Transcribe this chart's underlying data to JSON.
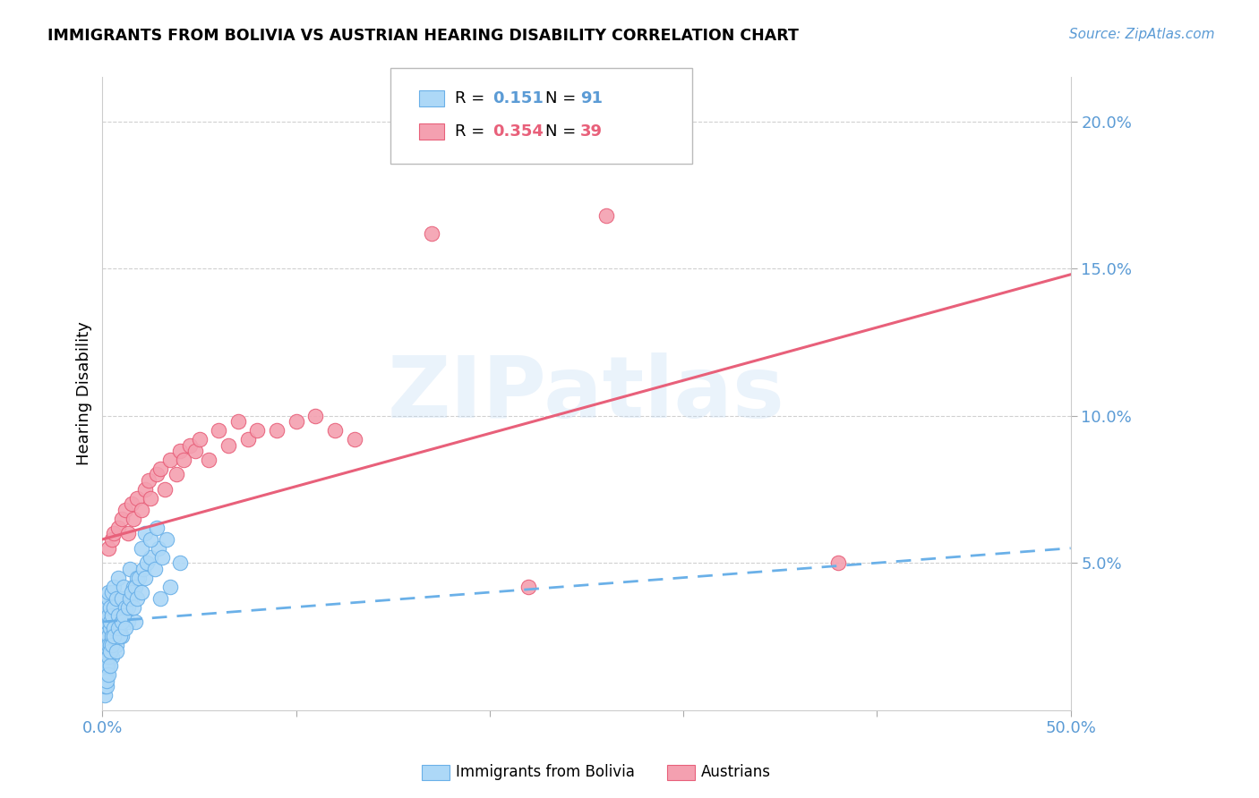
{
  "title": "IMMIGRANTS FROM BOLIVIA VS AUSTRIAN HEARING DISABILITY CORRELATION CHART",
  "source": "Source: ZipAtlas.com",
  "ylabel": "Hearing Disability",
  "watermark": "ZIPatlas",
  "xlim": [
    0.0,
    0.5
  ],
  "ylim": [
    0.0,
    0.215
  ],
  "yticks": [
    0.05,
    0.1,
    0.15,
    0.2
  ],
  "ytick_labels": [
    "5.0%",
    "10.0%",
    "15.0%",
    "20.0%"
  ],
  "xticks": [
    0.0,
    0.1,
    0.2,
    0.3,
    0.4,
    0.5
  ],
  "xtick_labels": [
    "0.0%",
    "",
    "",
    "",
    "",
    "50.0%"
  ],
  "color_blue": "#add8f7",
  "color_pink": "#f4a0b0",
  "color_blue_line": "#6ab0e8",
  "color_pink_line": "#e8607a",
  "color_axis_labels": "#5b9bd5",
  "color_grid": "#d0d0d0",
  "bolivia_x": [
    0.001,
    0.001,
    0.001,
    0.001,
    0.001,
    0.001,
    0.002,
    0.002,
    0.002,
    0.002,
    0.002,
    0.002,
    0.002,
    0.002,
    0.002,
    0.002,
    0.003,
    0.003,
    0.003,
    0.003,
    0.003,
    0.003,
    0.003,
    0.004,
    0.004,
    0.004,
    0.004,
    0.004,
    0.005,
    0.005,
    0.005,
    0.005,
    0.006,
    0.006,
    0.006,
    0.007,
    0.007,
    0.008,
    0.008,
    0.009,
    0.01,
    0.01,
    0.011,
    0.012,
    0.013,
    0.014,
    0.015,
    0.016,
    0.017,
    0.018,
    0.001,
    0.001,
    0.001,
    0.002,
    0.002,
    0.002,
    0.003,
    0.003,
    0.004,
    0.004,
    0.005,
    0.006,
    0.007,
    0.008,
    0.009,
    0.01,
    0.011,
    0.012,
    0.013,
    0.014,
    0.015,
    0.016,
    0.017,
    0.018,
    0.019,
    0.02,
    0.021,
    0.022,
    0.023,
    0.025,
    0.027,
    0.029,
    0.031,
    0.033,
    0.02,
    0.022,
    0.025,
    0.028,
    0.03,
    0.035,
    0.04
  ],
  "bolivia_y": [
    0.02,
    0.025,
    0.03,
    0.015,
    0.01,
    0.018,
    0.022,
    0.028,
    0.032,
    0.018,
    0.012,
    0.035,
    0.026,
    0.02,
    0.015,
    0.03,
    0.025,
    0.032,
    0.038,
    0.018,
    0.022,
    0.015,
    0.04,
    0.028,
    0.035,
    0.022,
    0.03,
    0.018,
    0.04,
    0.025,
    0.032,
    0.018,
    0.042,
    0.035,
    0.028,
    0.038,
    0.022,
    0.032,
    0.045,
    0.028,
    0.038,
    0.025,
    0.042,
    0.035,
    0.03,
    0.048,
    0.038,
    0.042,
    0.03,
    0.045,
    0.005,
    0.008,
    0.012,
    0.008,
    0.015,
    0.01,
    0.012,
    0.018,
    0.015,
    0.02,
    0.022,
    0.025,
    0.02,
    0.028,
    0.025,
    0.03,
    0.032,
    0.028,
    0.035,
    0.038,
    0.04,
    0.035,
    0.042,
    0.038,
    0.045,
    0.04,
    0.048,
    0.045,
    0.05,
    0.052,
    0.048,
    0.055,
    0.052,
    0.058,
    0.055,
    0.06,
    0.058,
    0.062,
    0.038,
    0.042,
    0.05
  ],
  "austrian_x": [
    0.003,
    0.005,
    0.006,
    0.008,
    0.01,
    0.012,
    0.013,
    0.015,
    0.016,
    0.018,
    0.02,
    0.022,
    0.024,
    0.025,
    0.028,
    0.03,
    0.032,
    0.035,
    0.038,
    0.04,
    0.042,
    0.045,
    0.048,
    0.05,
    0.055,
    0.06,
    0.065,
    0.07,
    0.075,
    0.08,
    0.09,
    0.1,
    0.11,
    0.12,
    0.13,
    0.38,
    0.26,
    0.17,
    0.22
  ],
  "austrian_y": [
    0.055,
    0.058,
    0.06,
    0.062,
    0.065,
    0.068,
    0.06,
    0.07,
    0.065,
    0.072,
    0.068,
    0.075,
    0.078,
    0.072,
    0.08,
    0.082,
    0.075,
    0.085,
    0.08,
    0.088,
    0.085,
    0.09,
    0.088,
    0.092,
    0.085,
    0.095,
    0.09,
    0.098,
    0.092,
    0.095,
    0.095,
    0.098,
    0.1,
    0.095,
    0.092,
    0.05,
    0.168,
    0.162,
    0.042
  ],
  "bolivia_trendline_x": [
    0.0,
    0.5
  ],
  "bolivia_trendline_y": [
    0.03,
    0.055
  ],
  "austrian_trendline_x": [
    0.0,
    0.5
  ],
  "austrian_trendline_y": [
    0.058,
    0.148
  ]
}
